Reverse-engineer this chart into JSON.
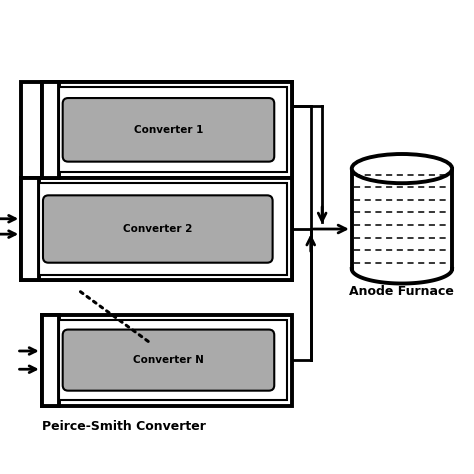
{
  "background_color": "#ffffff",
  "gray": "#aaaaaa",
  "black": "#000000",
  "white": "#ffffff",
  "converters": [
    "Converter 1",
    "Converter 2",
    "Converter N"
  ],
  "label_peirce": "Peirce-Smith Converter",
  "label_anode": "Anode Furnace",
  "figsize": [
    4.74,
    4.74
  ],
  "dpi": 100
}
